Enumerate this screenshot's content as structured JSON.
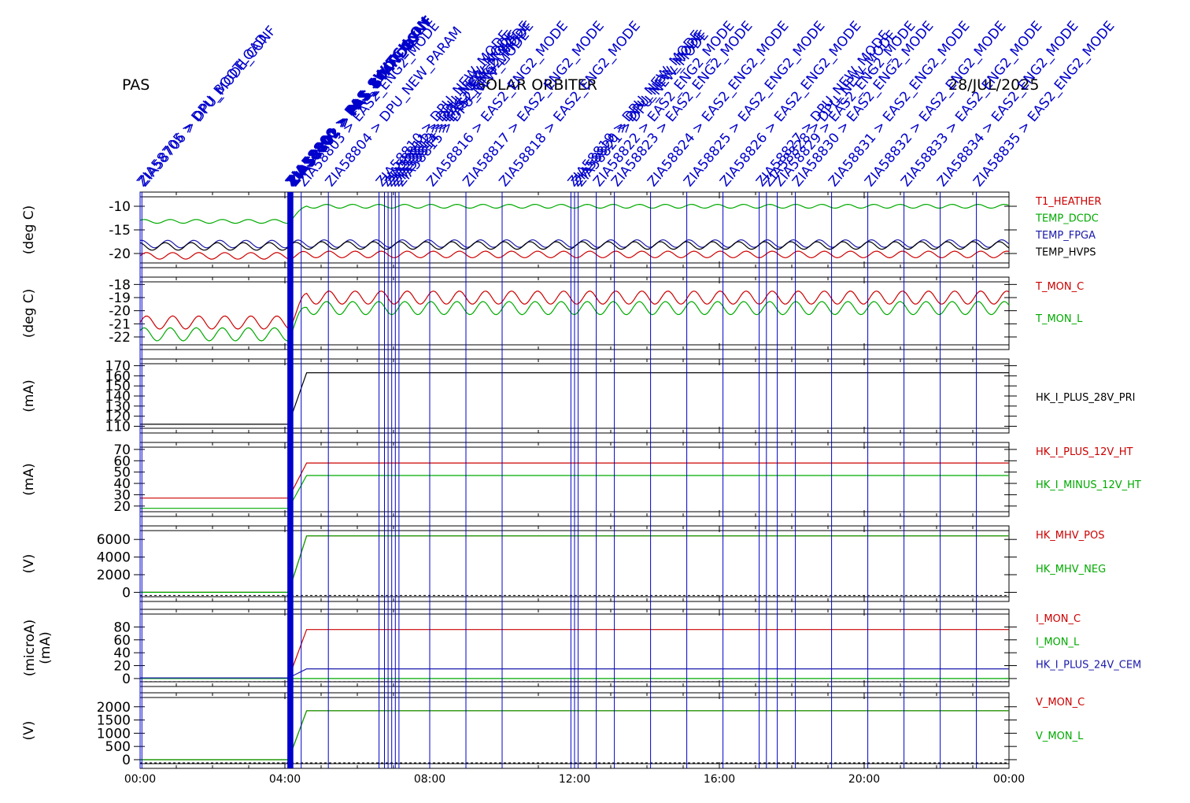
{
  "header": {
    "instrument": "PAS",
    "mission": "SOLAR ORBITER",
    "date": "28/JUL/2025"
  },
  "colors": {
    "red": "#cc0000",
    "green": "#00aa00",
    "blue": "#1a1aaa",
    "black": "#000000",
    "event": "#0000cc"
  },
  "chart_data": [
    {
      "type": "line",
      "ylabel": "(deg C)",
      "ylim": [
        -22,
        -8
      ],
      "yticks": [
        -10,
        -15,
        -20
      ],
      "yticklabels": [
        "-10",
        "-15",
        "-20"
      ],
      "series": [
        {
          "name": "T1_HEATHER",
          "color": "#cc0000",
          "seg1": -20.5,
          "seg2": -20.2,
          "osc": 0.7
        },
        {
          "name": "TEMP_DCDC",
          "color": "#00aa00",
          "seg1": -13.2,
          "seg2": -10.0,
          "osc": 0.4
        },
        {
          "name": "TEMP_FPGA",
          "color": "#1a1aaa",
          "seg1": -18.0,
          "seg2": -17.9,
          "osc": 0.8
        },
        {
          "name": "TEMP_HVPS",
          "color": "#000000",
          "seg1": -18.5,
          "seg2": -18.3,
          "osc": 0.8
        }
      ]
    },
    {
      "type": "line",
      "ylabel": "(deg C)",
      "ylim": [
        -22.6,
        -17.8
      ],
      "yticks": [
        -18,
        -19,
        -20,
        -21,
        -22
      ],
      "yticklabels": [
        "-18",
        "-19",
        "-20",
        "-21",
        "-22"
      ],
      "series": [
        {
          "name": "T_MON_C",
          "color": "#cc0000",
          "seg1": -20.9,
          "seg2": -19.0,
          "osc": 0.5
        },
        {
          "name": "T_MON_L",
          "color": "#00aa00",
          "seg1": -21.8,
          "seg2": -19.8,
          "osc": 0.5
        }
      ]
    },
    {
      "type": "line",
      "ylabel": "(mA)",
      "ylim": [
        108,
        172
      ],
      "yticks": [
        170,
        160,
        150,
        140,
        130,
        120,
        110
      ],
      "yticklabels": [
        "170",
        "160",
        "150",
        "140",
        "130",
        "120",
        "110"
      ],
      "series": [
        {
          "name": "HK_I_PLUS_28V_PRI",
          "color": "#000000",
          "seg1": 112,
          "seg2": 163,
          "osc": 0
        }
      ]
    },
    {
      "type": "line",
      "ylabel": "(mA)",
      "ylim": [
        15,
        72
      ],
      "yticks": [
        70,
        60,
        50,
        40,
        30,
        20
      ],
      "yticklabels": [
        "70",
        "60",
        "50",
        "40",
        "30",
        "20"
      ],
      "series": [
        {
          "name": "HK_I_PLUS_12V_HT",
          "color": "#cc0000",
          "seg1": 27,
          "seg2": 58,
          "osc": 0
        },
        {
          "name": "HK_I_MINUS_12V_HT",
          "color": "#00aa00",
          "seg1": 18,
          "seg2": 47,
          "osc": 0
        }
      ]
    },
    {
      "type": "line",
      "ylabel": "(V)",
      "ylim": [
        -500,
        7000
      ],
      "yticks": [
        6000,
        4000,
        2000,
        0
      ],
      "yticklabels": [
        "6000",
        "4000",
        "2000",
        "0"
      ],
      "series": [
        {
          "name": "HK_MHV_POS",
          "color": "#cc0000",
          "seg1": 0,
          "seg2": 6400,
          "osc": 0
        },
        {
          "name": "HK_MHV_NEG",
          "color": "#00aa00",
          "seg1": 0,
          "seg2": 6400,
          "osc": 0
        }
      ]
    },
    {
      "type": "line",
      "ylabel": "(microA)",
      "ylabel2": "(mA)",
      "ylim": [
        -5,
        100
      ],
      "yticks": [
        80,
        60,
        40,
        20,
        0
      ],
      "yticklabels": [
        "80",
        "60",
        "40",
        "20",
        "0"
      ],
      "series": [
        {
          "name": "I_MON_C",
          "color": "#cc0000",
          "seg1": 0,
          "seg2": 76,
          "osc": 0
        },
        {
          "name": "I_MON_L",
          "color": "#00aa00",
          "seg1": 0,
          "seg2": 0,
          "osc": 0
        },
        {
          "name": "HK_I_PLUS_24V_CEM",
          "color": "#1a1aaa",
          "seg1": 1,
          "seg2": 15,
          "osc": 0
        }
      ]
    },
    {
      "type": "line",
      "ylabel": "(V)",
      "ylim": [
        -150,
        2350
      ],
      "yticks": [
        2000,
        1500,
        1000,
        500,
        0
      ],
      "yticklabels": [
        "2000",
        "1500",
        "1000",
        "500",
        "0"
      ],
      "series": [
        {
          "name": "V_MON_C",
          "color": "#cc0000",
          "seg1": 0,
          "seg2": 1850,
          "osc": 0
        },
        {
          "name": "V_MON_L",
          "color": "#00aa00",
          "seg1": 0,
          "seg2": 1850,
          "osc": 0
        }
      ]
    }
  ],
  "xaxis": {
    "range_hours": [
      0,
      24
    ],
    "ticks": [
      0,
      4,
      8,
      12,
      16,
      20,
      24
    ],
    "ticklabels": [
      "00:00",
      "04:00",
      "08:00",
      "12:00",
      "16:00",
      "20:00",
      "00:00"
    ]
  },
  "events": [
    {
      "t": 0.0,
      "label": "ZIA58705 > DPU_BOOTLOAD",
      "bold": false
    },
    {
      "t": 0.05,
      "label": "ZIA58706 > DPU_MODE_CONF",
      "bold": false
    },
    {
      "t": 4.1,
      "label": "ZIA58800 > PAS_SWITCH_ON",
      "bold": true
    },
    {
      "t": 4.15,
      "label": "ZIA58801 > PAS_BOOT_CONF",
      "bold": true
    },
    {
      "t": 4.2,
      "label": "ZIA58802 > PAS_STANDBY",
      "bold": true
    },
    {
      "t": 4.45,
      "label": "ZIA58803 > EAS2_ENG2_MODE",
      "bold": false
    },
    {
      "t": 5.2,
      "label": "ZIA58804 > DPU_NEW_PARAM",
      "bold": false
    },
    {
      "t": 6.6,
      "label": "ZIA58810 > DPU_NEW_MODE",
      "bold": false
    },
    {
      "t": 6.75,
      "label": "ZIA58811 > DPU_NEW_MODE",
      "bold": false
    },
    {
      "t": 6.85,
      "label": "ZIA58812 > DPU_NEW_MODE",
      "bold": false
    },
    {
      "t": 6.95,
      "label": "ZIA58813 > EAS2_ENG2_MODE",
      "bold": false
    },
    {
      "t": 7.05,
      "label": "ZIA58814 > EAS2_ENG2_MODE",
      "bold": false
    },
    {
      "t": 7.15,
      "label": "ZIA58815 > DPU_NEW_MODE",
      "bold": false
    },
    {
      "t": 8.0,
      "label": "ZIA58816 > EAS2_ENG2_MODE",
      "bold": false
    },
    {
      "t": 9.0,
      "label": "ZIA58817 > EAS2_ENG2_MODE",
      "bold": false
    },
    {
      "t": 10.0,
      "label": "ZIA58818 > EAS2_ENG2_MODE",
      "bold": false
    },
    {
      "t": 11.9,
      "label": "ZIA58819 > DPU_NEW_MODE",
      "bold": false
    },
    {
      "t": 12.0,
      "label": "ZIA58820 > DPU_NEW_MODE",
      "bold": false
    },
    {
      "t": 12.1,
      "label": "ZIA58821 > DPU_NEW_MODE",
      "bold": false
    },
    {
      "t": 12.6,
      "label": "ZIA58822 > EAS2_ENG2_MODE",
      "bold": false
    },
    {
      "t": 13.1,
      "label": "ZIA58823 > EAS2_ENG2_MODE",
      "bold": false
    },
    {
      "t": 14.1,
      "label": "ZIA58824 > EAS2_ENG2_MODE",
      "bold": false
    },
    {
      "t": 15.1,
      "label": "ZIA58825 > EAS2_ENG2_MODE",
      "bold": false
    },
    {
      "t": 16.1,
      "label": "ZIA58826 > EAS2_ENG2_MODE",
      "bold": false
    },
    {
      "t": 17.1,
      "label": "ZIA58827 > DPU_NEW_MODE",
      "bold": false
    },
    {
      "t": 17.3,
      "label": "ZIA58828 > DPU_NEW_MODE",
      "bold": false
    },
    {
      "t": 17.6,
      "label": "ZIA58829 > EAS2_ENG2_MODE",
      "bold": false
    },
    {
      "t": 18.1,
      "label": "ZIA58830 > EAS2_ENG2_MODE",
      "bold": false
    },
    {
      "t": 19.1,
      "label": "ZIA58831 > EAS2_ENG2_MODE",
      "bold": false
    },
    {
      "t": 20.1,
      "label": "ZIA58832 > EAS2_ENG2_MODE",
      "bold": false
    },
    {
      "t": 21.1,
      "label": "ZIA58833 > EAS2_ENG2_MODE",
      "bold": false
    },
    {
      "t": 22.1,
      "label": "ZIA58834 > EAS2_ENG2_MODE",
      "bold": false
    },
    {
      "t": 23.1,
      "label": "ZIA58835 > EAS2_ENG2_MODE",
      "bold": false
    }
  ]
}
